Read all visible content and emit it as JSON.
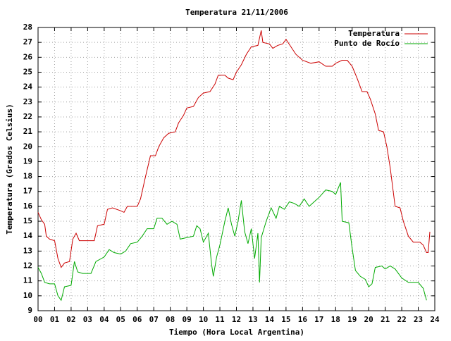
{
  "chart_data": {
    "type": "line",
    "title": "Temperatura 21/11/2006",
    "xlabel": "Tiempo (Hora Local Argentina)",
    "ylabel": "Temperatura (Grados Celsius)",
    "xlim": [
      0,
      24
    ],
    "xticks": [
      {
        "value": 0,
        "label": "00"
      },
      {
        "value": 1,
        "label": "01"
      },
      {
        "value": 2,
        "label": "02"
      },
      {
        "value": 3,
        "label": "03"
      },
      {
        "value": 4,
        "label": "04"
      },
      {
        "value": 5,
        "label": "05"
      },
      {
        "value": 6,
        "label": "06"
      },
      {
        "value": 7,
        "label": "07"
      },
      {
        "value": 8,
        "label": "08"
      },
      {
        "value": 9,
        "label": "09"
      },
      10,
      11,
      12,
      13,
      14,
      15,
      16,
      17,
      18,
      19,
      20,
      21,
      22,
      23,
      24
    ],
    "ylim": [
      9,
      28
    ],
    "yticks": [
      9,
      10,
      11,
      12,
      13,
      14,
      15,
      16,
      17,
      18,
      19,
      20,
      21,
      22,
      23,
      24,
      25,
      26,
      27,
      28
    ],
    "grid": true,
    "legend": "top-right",
    "series": [
      {
        "name": "Temperatura",
        "color": "#cc0000",
        "x": [
          0.0,
          0.2,
          0.4,
          0.5,
          0.7,
          1.0,
          1.2,
          1.4,
          1.6,
          1.9,
          2.1,
          2.3,
          2.5,
          3.0,
          3.4,
          3.6,
          4.0,
          4.2,
          4.5,
          5.0,
          5.2,
          5.4,
          6.0,
          6.2,
          6.5,
          6.8,
          7.1,
          7.3,
          7.6,
          7.9,
          8.3,
          8.5,
          8.8,
          9.0,
          9.4,
          9.7,
          10.0,
          10.4,
          10.7,
          10.9,
          11.3,
          11.5,
          11.8,
          12.0,
          12.3,
          12.6,
          12.9,
          13.3,
          13.5,
          13.6,
          14.0,
          14.2,
          14.5,
          14.8,
          15.0,
          15.3,
          15.6,
          16.0,
          16.5,
          17.0,
          17.4,
          17.8,
          18.0,
          18.4,
          18.7,
          19.0,
          19.3,
          19.6,
          19.9,
          20.1,
          20.4,
          20.6,
          20.9,
          21.1,
          21.3,
          21.6,
          21.9,
          22.1,
          22.4,
          22.7,
          23.1,
          23.3,
          23.5,
          23.6,
          23.7
        ],
        "values": [
          15.6,
          15.1,
          14.8,
          14.0,
          13.8,
          13.7,
          12.5,
          11.9,
          12.2,
          12.3,
          13.8,
          14.2,
          13.7,
          13.7,
          13.7,
          14.7,
          14.8,
          15.8,
          15.9,
          15.7,
          15.6,
          16.0,
          16.0,
          16.5,
          18.0,
          19.4,
          19.4,
          20.0,
          20.6,
          20.9,
          21.0,
          21.6,
          22.1,
          22.6,
          22.7,
          23.3,
          23.6,
          23.7,
          24.2,
          24.8,
          24.8,
          24.6,
          24.5,
          25.0,
          25.5,
          26.2,
          26.7,
          26.8,
          27.8,
          27.0,
          26.9,
          26.6,
          26.8,
          26.9,
          27.2,
          26.7,
          26.2,
          25.8,
          25.6,
          25.7,
          25.4,
          25.4,
          25.6,
          25.8,
          25.8,
          25.4,
          24.6,
          23.7,
          23.7,
          23.2,
          22.2,
          21.1,
          21.0,
          20.0,
          18.6,
          16.0,
          15.9,
          15.0,
          14.0,
          13.6,
          13.6,
          13.4,
          12.9,
          12.9,
          14.3
        ]
      },
      {
        "name": "Punto de Rocío",
        "color": "#00aa00",
        "x": [
          0.0,
          0.2,
          0.4,
          0.7,
          1.0,
          1.2,
          1.4,
          1.6,
          2.0,
          2.2,
          2.4,
          2.7,
          3.2,
          3.5,
          4.0,
          4.3,
          4.6,
          5.0,
          5.3,
          5.6,
          6.0,
          6.3,
          6.6,
          7.0,
          7.2,
          7.5,
          7.8,
          8.1,
          8.4,
          8.6,
          9.0,
          9.4,
          9.6,
          9.8,
          10.0,
          10.3,
          10.5,
          10.6,
          10.8,
          11.0,
          11.3,
          11.5,
          11.7,
          11.9,
          12.1,
          12.3,
          12.5,
          12.7,
          12.9,
          13.1,
          13.3,
          13.4,
          13.5,
          13.8,
          14.1,
          14.4,
          14.6,
          14.9,
          15.2,
          15.5,
          15.8,
          16.1,
          16.4,
          16.8,
          17.0,
          17.4,
          17.8,
          18.0,
          18.3,
          18.4,
          18.8,
          19.0,
          19.2,
          19.5,
          19.8,
          20.0,
          20.2,
          20.4,
          20.8,
          21.0,
          21.3,
          21.6,
          22.0,
          22.4,
          23.0,
          23.3,
          23.5
        ],
        "values": [
          11.9,
          11.5,
          10.9,
          10.8,
          10.8,
          10.0,
          9.7,
          10.6,
          10.7,
          12.3,
          11.6,
          11.5,
          11.5,
          12.3,
          12.6,
          13.1,
          12.9,
          12.8,
          13.0,
          13.5,
          13.6,
          14.0,
          14.5,
          14.5,
          15.2,
          15.2,
          14.8,
          15.0,
          14.8,
          13.8,
          13.9,
          14.0,
          14.7,
          14.5,
          13.6,
          14.2,
          12.1,
          11.3,
          12.6,
          13.4,
          15.0,
          15.9,
          14.8,
          14.0,
          15.0,
          16.4,
          14.3,
          13.5,
          14.5,
          12.5,
          14.2,
          10.9,
          13.9,
          15.0,
          15.9,
          15.2,
          16.0,
          15.8,
          16.3,
          16.2,
          16.0,
          16.5,
          16.0,
          16.4,
          16.6,
          17.1,
          17.0,
          16.8,
          17.6,
          15.0,
          14.9,
          13.2,
          11.7,
          11.3,
          11.1,
          10.6,
          10.8,
          11.9,
          12.0,
          11.8,
          12.0,
          11.8,
          11.2,
          10.9,
          10.9,
          10.5,
          9.7
        ]
      }
    ]
  }
}
